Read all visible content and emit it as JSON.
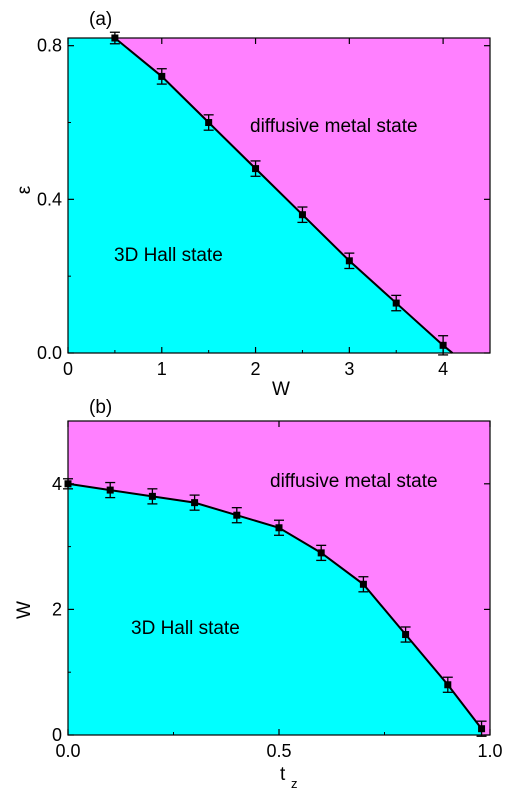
{
  "colors": {
    "upper_region": "#ff80ff",
    "lower_region": "#00ffff",
    "line": "#000000",
    "marker": "#000000"
  },
  "chart_data": [
    {
      "type": "area",
      "panel_label": "(a)",
      "xlabel": "W",
      "ylabel": "ε",
      "xlim": [
        0,
        4.5
      ],
      "ylim": [
        0,
        0.82
      ],
      "xticks": [
        0,
        1,
        2,
        3,
        4
      ],
      "xtick_labels": [
        "0",
        "1",
        "2",
        "3",
        "4"
      ],
      "yticks": [
        0.0,
        0.4,
        0.8
      ],
      "ytick_labels": [
        "0.0",
        "0.4",
        "0.8"
      ],
      "upper_region_label": "diffusive metal state",
      "lower_region_label": "3D Hall state",
      "boundary_end": [
        4.1,
        0.0
      ],
      "series": [
        {
          "x": [
            0.5,
            1.0,
            1.5,
            2.0,
            2.5,
            3.0,
            3.5,
            4.0
          ],
          "y": [
            0.82,
            0.72,
            0.6,
            0.48,
            0.36,
            0.24,
            0.13,
            0.02
          ],
          "err": [
            0.015,
            0.02,
            0.02,
            0.02,
            0.02,
            0.02,
            0.02,
            0.025
          ]
        }
      ]
    },
    {
      "type": "area",
      "panel_label": "(b)",
      "xlabel": "t",
      "xlabel_sub": "z",
      "ylabel": "W",
      "xlim": [
        0.0,
        1.0
      ],
      "ylim": [
        0,
        5.0
      ],
      "xticks": [
        0.0,
        0.5,
        1.0
      ],
      "xtick_labels": [
        "0.0",
        "0.5",
        "1.0"
      ],
      "yticks": [
        0,
        2,
        4
      ],
      "ytick_labels": [
        "0",
        "2",
        "4"
      ],
      "upper_region_label": "diffusive metal state",
      "lower_region_label": "3D Hall state",
      "series": [
        {
          "x": [
            0.0,
            0.1,
            0.2,
            0.3,
            0.4,
            0.5,
            0.6,
            0.7,
            0.8,
            0.9,
            0.98
          ],
          "y": [
            4.0,
            3.9,
            3.8,
            3.7,
            3.5,
            3.3,
            2.9,
            2.4,
            1.6,
            0.8,
            0.1
          ],
          "err": [
            0.08,
            0.12,
            0.12,
            0.12,
            0.12,
            0.12,
            0.12,
            0.12,
            0.12,
            0.12,
            0.12
          ]
        }
      ]
    }
  ]
}
